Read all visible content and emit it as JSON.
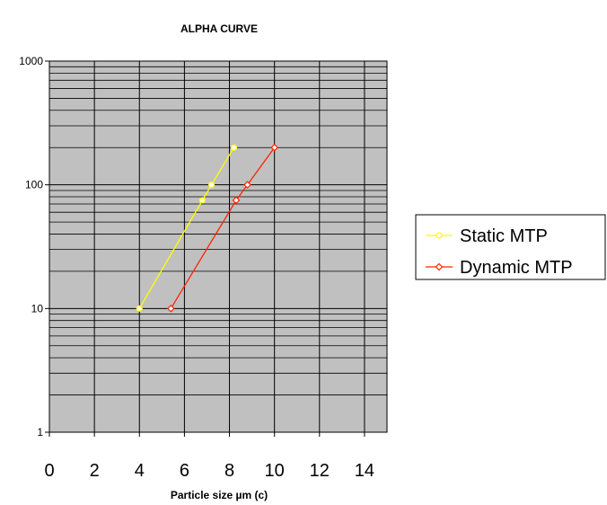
{
  "chart_data": {
    "type": "line",
    "title": "ALPHA CURVE",
    "xlabel": "Particle size µm (c)",
    "ylabel": "",
    "xlim": [
      0,
      15
    ],
    "ylim": [
      1,
      1000
    ],
    "yscale": "log",
    "x_ticks": [
      "0",
      "2",
      "4",
      "6",
      "8",
      "10",
      "12",
      "14"
    ],
    "y_ticks": [
      "1",
      "10",
      "100",
      "1000"
    ],
    "grid": true,
    "plot_background": "#c0c0c0",
    "legend_position": "right",
    "series": [
      {
        "name": "Static MTP",
        "color": "#ffff00",
        "marker": "circle",
        "points": [
          [
            4.0,
            10
          ],
          [
            6.8,
            75
          ],
          [
            7.2,
            100
          ],
          [
            8.2,
            200
          ]
        ]
      },
      {
        "name": "Dynamic MTP",
        "color": "#ff2200",
        "marker": "diamond",
        "points": [
          [
            5.4,
            10
          ],
          [
            8.3,
            75
          ],
          [
            8.8,
            100
          ],
          [
            10.0,
            200
          ]
        ]
      }
    ]
  }
}
